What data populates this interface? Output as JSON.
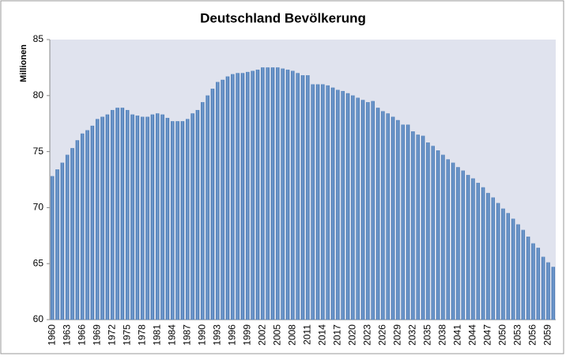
{
  "chart_data": {
    "type": "bar",
    "title": "Deutschland Bevölkerung",
    "y_label": "Millionen",
    "categories": [
      "1960",
      null,
      null,
      "1963",
      null,
      null,
      "1966",
      null,
      null,
      "1969",
      null,
      null,
      "1972",
      null,
      null,
      "1975",
      null,
      null,
      "1978",
      null,
      null,
      "1981",
      null,
      null,
      "1984",
      null,
      null,
      "1987",
      null,
      null,
      "1990",
      null,
      null,
      "1993",
      null,
      null,
      "1996",
      null,
      null,
      "1999",
      null,
      null,
      "2002",
      null,
      null,
      "2005",
      null,
      null,
      "2008",
      null,
      null,
      "2011",
      null,
      null,
      "2014",
      null,
      null,
      "2017",
      null,
      null,
      "2020",
      null,
      null,
      "2023",
      null,
      null,
      "2026",
      null,
      null,
      "2029",
      null,
      null,
      "2032",
      null,
      null,
      "2035",
      null,
      null,
      "2038",
      null,
      null,
      "2041",
      null,
      null,
      "2044",
      null,
      null,
      "2047",
      null,
      null,
      "2050",
      null,
      null,
      "2053",
      null,
      null,
      "2056",
      null,
      null,
      "2059",
      null
    ],
    "values": [
      72.8,
      73.4,
      74.0,
      74.7,
      75.3,
      76.0,
      76.6,
      76.9,
      77.3,
      77.9,
      78.1,
      78.3,
      78.7,
      78.9,
      78.9,
      78.7,
      78.3,
      78.2,
      78.1,
      78.1,
      78.3,
      78.4,
      78.3,
      78.0,
      77.7,
      77.7,
      77.7,
      77.9,
      78.4,
      78.7,
      79.4,
      80.0,
      80.6,
      81.2,
      81.4,
      81.7,
      81.9,
      82.0,
      82.0,
      82.1,
      82.2,
      82.3,
      82.5,
      82.5,
      82.5,
      82.5,
      82.4,
      82.3,
      82.2,
      82.0,
      81.8,
      81.8,
      81.0,
      81.0,
      81.0,
      80.9,
      80.7,
      80.5,
      80.4,
      80.2,
      80.0,
      79.8,
      79.6,
      79.4,
      79.5,
      78.9,
      78.6,
      78.4,
      78.1,
      77.8,
      77.4,
      77.4,
      76.8,
      76.5,
      76.4,
      75.8,
      75.5,
      75.1,
      74.7,
      74.3,
      74.0,
      73.6,
      73.3,
      72.9,
      72.6,
      72.2,
      71.8,
      71.3,
      70.9,
      70.4,
      69.9,
      69.5,
      69.0,
      68.5,
      68.0,
      67.4,
      66.8,
      66.4,
      65.6,
      65.1,
      64.7
    ],
    "color": "#4f81bd",
    "ylim": [
      60,
      85
    ],
    "yticks": [
      60,
      65,
      70,
      75,
      80,
      85
    ],
    "grid": false
  }
}
